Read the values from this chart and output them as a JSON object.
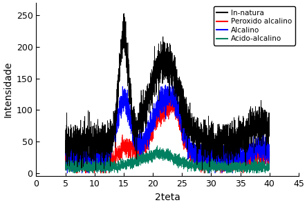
{
  "title": "",
  "xlabel": "2teta",
  "ylabel": "Intensidade",
  "xlim": [
    0,
    45
  ],
  "ylim": [
    -5,
    270
  ],
  "xticks": [
    0,
    5,
    10,
    15,
    20,
    25,
    30,
    35,
    40,
    45
  ],
  "yticks": [
    0,
    50,
    100,
    150,
    200,
    250
  ],
  "legend_labels": [
    "In-natura",
    "Peroxido alcalino",
    "Alcalino",
    "Acido-alcalino"
  ],
  "legend_colors": [
    "#000000",
    "#ff0000",
    "#0000ff",
    "#008060"
  ],
  "line_width": 0.5,
  "seed": 12345,
  "n_points": 3500
}
